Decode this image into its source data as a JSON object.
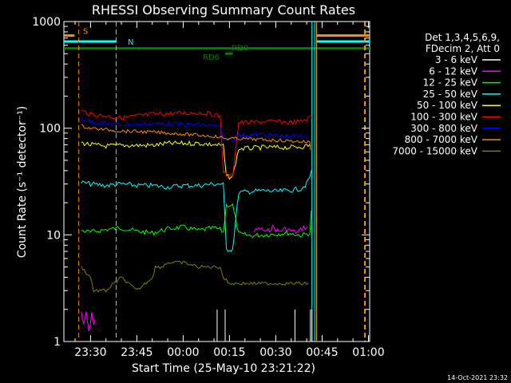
{
  "chart_data": {
    "type": "line",
    "title": "RHESSI Observing Summary Count Rates",
    "xlabel": "Start Time (25-May-10 23:21:22)",
    "ylabel": "Count Rate (s⁻¹ detector⁻¹)",
    "x_ticks": [
      "23:30",
      "23:45",
      "00:00",
      "00:15",
      "00:30",
      "00:45",
      "01:00"
    ],
    "x_tick_minutes": [
      30,
      45,
      60,
      75,
      90,
      105,
      120
    ],
    "x_minor_step": 5,
    "xlim_minutes": [
      21.37,
      120.4
    ],
    "ylim": [
      1,
      1000
    ],
    "y_scale": "log",
    "y_ticks": [
      "1",
      "10",
      "100",
      "1000"
    ],
    "y_tick_values": [
      1,
      10,
      100,
      1000
    ],
    "grid": false,
    "legend_position": "right",
    "legend_header": [
      "Det 1,3,4,5,6,9,",
      "FDecim 2, Att 0"
    ],
    "timestamp": "14-Oct-2021 23:32",
    "flags": [
      {
        "label": "S",
        "color": "#ff8c00",
        "start": 21.4,
        "end": 24.8,
        "value": 740
      },
      {
        "label": "S",
        "color": "#ff8c00",
        "start": 103.2,
        "end": 120.4,
        "value": 740
      },
      {
        "label": "N",
        "color": "#00ffff",
        "start": 21.4,
        "end": 38.4,
        "value": 650
      },
      {
        "label": "",
        "color": "#00ffff",
        "start": 103.2,
        "end": 120.4,
        "value": 650
      },
      {
        "label": "RD0",
        "color": "#008000",
        "start": 21.4,
        "end": 120.4,
        "value": 560
      },
      {
        "label": "RD6",
        "color": "#008000",
        "start": 73.6,
        "end": 76.1,
        "value": 500
      }
    ],
    "markers": [
      {
        "minute": 26.2,
        "color": "#ff8c00",
        "style": "dashed"
      },
      {
        "minute": 38.3,
        "color": "#00ffff",
        "style": "dashed"
      },
      {
        "minute": 101.7,
        "color": "#00ffff",
        "style": "solid"
      },
      {
        "minute": 102.6,
        "color": "#00ffff",
        "style": "solid"
      },
      {
        "minute": 103.2,
        "color": "#ff8c00",
        "style": "solid"
      },
      {
        "minute": 118.7,
        "color": "#ff8c00",
        "style": "dashed"
      },
      {
        "minute": 119.0,
        "color": "#00ffff",
        "style": "dashed"
      }
    ],
    "series": [
      {
        "name": "3 - 6 keV",
        "color": "#ffffff",
        "x": [
          28.0,
          50.0,
          70.0,
          90.0,
          101.0,
          102.0
        ],
        "values": [
          null,
          null,
          null,
          null,
          null,
          null
        ],
        "spikes": [
          71.0,
          73.6,
          96.2,
          101.2,
          101.7
        ]
      },
      {
        "name": "6 - 12 keV",
        "color": "#ff00ff",
        "x": [
          27.0,
          27.8,
          28.6,
          29.5,
          30.4,
          31.1,
          31.7
        ],
        "values": [
          1.9,
          1.4,
          1.9,
          1.2,
          1.9,
          1.4,
          1.9
        ],
        "x2": [
          83.0,
          85.0,
          87.0,
          89.0,
          91.0,
          93.0,
          95.0,
          97.0,
          99.0,
          101.0
        ],
        "values2": [
          10.8,
          11.5,
          10.6,
          11.8,
          10.7,
          11.4,
          11.0,
          10.5,
          11.8,
          11.4
        ]
      },
      {
        "name": "12 - 25 keV",
        "color": "#00ff00",
        "x": [
          27.0,
          30.0,
          35.0,
          40.0,
          45.0,
          50.0,
          55.0,
          60.0,
          65.0,
          70.0,
          72.0,
          73.0,
          74.0,
          75.0,
          76.0,
          78.0,
          82.0,
          86.0,
          90.0,
          94.0,
          98.0,
          101.0,
          102.0
        ],
        "values": [
          11.0,
          10.6,
          11.2,
          11.6,
          10.8,
          10.4,
          11.4,
          11.8,
          11.0,
          11.6,
          11.2,
          10.6,
          19.0,
          19.0,
          19.0,
          10.2,
          9.8,
          10.0,
          10.2,
          10.4,
          9.9,
          10.3,
          26.0
        ]
      },
      {
        "name": "25 - 50 keV",
        "color": "#00ffff",
        "x": [
          27.0,
          30.0,
          35.0,
          40.0,
          45.0,
          50.0,
          55.0,
          60.0,
          65.0,
          70.0,
          72.0,
          73.0,
          74.0,
          75.0,
          76.0,
          78.0,
          82.0,
          86.0,
          90.0,
          94.0,
          98.0,
          100.0,
          101.5,
          102.0
        ],
        "values": [
          31.0,
          30.0,
          29.0,
          30.0,
          29.0,
          29.0,
          28.0,
          29.0,
          29.0,
          30.0,
          30.0,
          29.5,
          7.3,
          7.3,
          7.3,
          25.0,
          25.5,
          26.0,
          25.5,
          26.0,
          27.0,
          30.0,
          38.0,
          46.0
        ]
      },
      {
        "name": "50 - 100 keV",
        "color": "#ffff00",
        "x": [
          27.0,
          30.0,
          35.0,
          40.0,
          45.0,
          50.0,
          55.0,
          60.0,
          65.0,
          70.0,
          72.0,
          73.0,
          74.0,
          75.0,
          76.0,
          78.0,
          82.0,
          86.0,
          90.0,
          94.0,
          98.0,
          101.0,
          101.5
        ],
        "values": [
          73.0,
          70.0,
          68.0,
          69.0,
          69.0,
          69.0,
          72.0,
          72.0,
          72.0,
          70.0,
          69.0,
          68.0,
          35.0,
          35.0,
          35.0,
          64.0,
          65.0,
          66.0,
          66.0,
          66.0,
          67.0,
          69.0,
          75.0
        ]
      },
      {
        "name": "100 - 300 keV",
        "color": "#ff0000",
        "x": [
          27.0,
          30.0,
          35.0,
          40.0,
          45.0,
          50.0,
          55.0,
          60.0,
          65.0,
          70.0,
          72.0,
          73.0,
          74.0,
          75.0,
          76.0,
          78.0,
          82.0,
          86.0,
          90.0,
          94.0,
          98.0,
          101.0,
          101.5
        ],
        "values": [
          145.0,
          135.0,
          130.0,
          125.0,
          130.0,
          135.0,
          137.0,
          138.0,
          140.0,
          135.0,
          128.0,
          40.0,
          36.0,
          35.0,
          36.0,
          113.0,
          113.0,
          115.0,
          115.0,
          113.0,
          115.0,
          125.0,
          140.0
        ]
      },
      {
        "name": "300 - 800 keV",
        "color": "#0000ff",
        "x": [
          27.0,
          30.0,
          35.0,
          40.0,
          45.0,
          50.0,
          55.0,
          60.0,
          65.0,
          70.0,
          72.0,
          73.0,
          74.0,
          75.0,
          76.0,
          78.0,
          82.0,
          86.0,
          90.0,
          94.0,
          98.0,
          101.0
        ],
        "values": [
          125.0,
          115.0,
          110.0,
          108.0,
          108.0,
          110.0,
          110.0,
          108.0,
          108.0,
          105.0,
          100.0,
          80.0,
          75.0,
          80.0,
          78.0,
          85.0,
          87.0,
          87.0,
          85.0,
          84.0,
          84.0,
          85.0
        ]
      },
      {
        "name": "800 - 7000 keV",
        "color": "#ff8c00",
        "x": [
          27.0,
          30.0,
          35.0,
          40.0,
          45.0,
          50.0,
          55.0,
          60.0,
          65.0,
          70.0,
          72.0,
          73.0,
          74.0,
          75.0,
          76.0,
          78.0,
          82.0,
          86.0,
          90.0,
          94.0,
          98.0,
          101.0,
          101.5
        ],
        "values": [
          105.0,
          100.0,
          97.0,
          94.0,
          93.0,
          92.0,
          90.0,
          88.0,
          86.0,
          84.0,
          82.0,
          81.0,
          80.0,
          80.0,
          80.0,
          80.0,
          79.0,
          78.0,
          77.0,
          76.0,
          75.0,
          74.0,
          55.0
        ]
      },
      {
        "name": "7000 - 15000 keV",
        "color": "#808000",
        "x": [
          27.0,
          30.0,
          31.0,
          35.0,
          40.0,
          45.0,
          50.0,
          51.0,
          53.0,
          55.0,
          60.0,
          65.0,
          68.0,
          70.0,
          72.0,
          73.0,
          75.0,
          78.0,
          82.0,
          86.0,
          90.0,
          94.0,
          98.0,
          101.0
        ],
        "values": [
          5.0,
          4.0,
          3.0,
          3.0,
          4.0,
          3.0,
          4.0,
          5.0,
          5.0,
          5.5,
          5.5,
          5.0,
          5.0,
          5.0,
          5.0,
          4.0,
          3.5,
          3.5,
          3.5,
          3.5,
          3.5,
          3.5,
          3.5,
          3.5
        ]
      }
    ]
  }
}
